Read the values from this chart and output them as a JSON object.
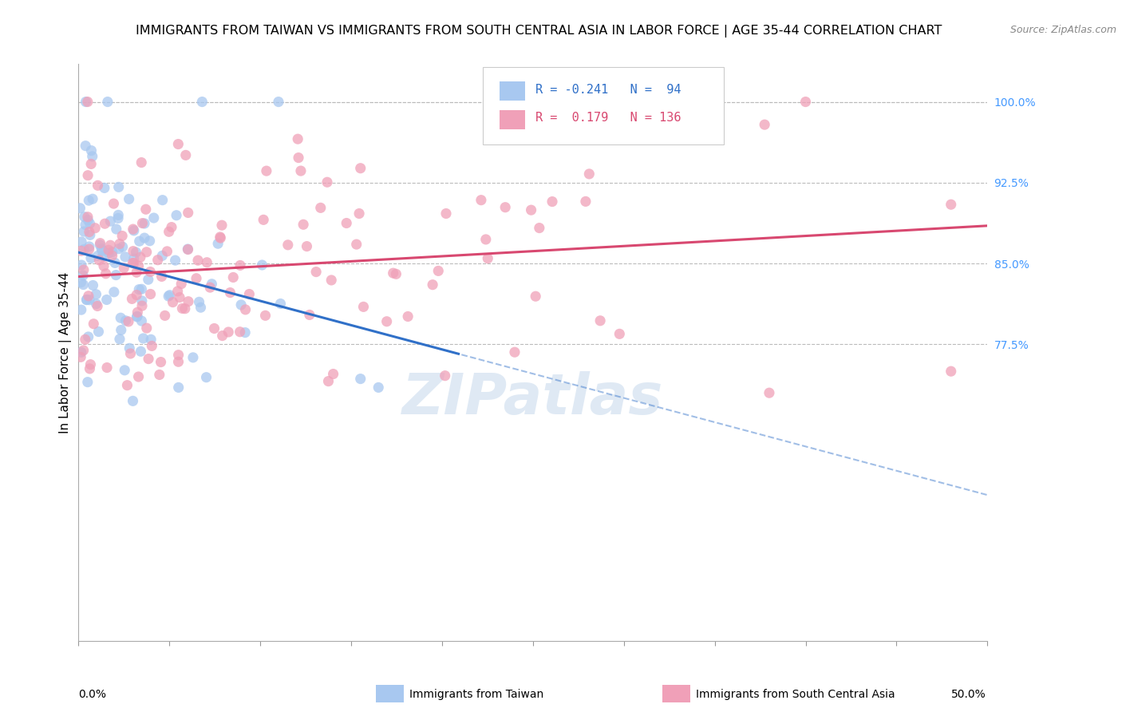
{
  "title": "IMMIGRANTS FROM TAIWAN VS IMMIGRANTS FROM SOUTH CENTRAL ASIA IN LABOR FORCE | AGE 35-44 CORRELATION CHART",
  "source": "Source: ZipAtlas.com",
  "ylabel": "In Labor Force | Age 35-44",
  "x_lim": [
    0.0,
    0.5
  ],
  "y_lim": [
    0.5,
    1.035
  ],
  "y_ticks": [
    0.775,
    0.85,
    0.925,
    1.0
  ],
  "y_tick_labels": [
    "77.5%",
    "85.0%",
    "92.5%",
    "100.0%"
  ],
  "blue_R": -0.241,
  "blue_N": 94,
  "pink_R": 0.179,
  "pink_N": 136,
  "blue_color": "#A8C8F0",
  "pink_color": "#F0A0B8",
  "blue_line_color": "#3070C8",
  "pink_line_color": "#D84870",
  "blue_line_solid_end": 0.21,
  "legend_label_blue": "Immigrants from Taiwan",
  "legend_label_pink": "Immigrants from South Central Asia",
  "watermark": "ZIPatlas",
  "background_color": "#FFFFFF",
  "grid_color": "#BBBBBB",
  "title_fontsize": 11.5,
  "source_fontsize": 9,
  "axis_label_fontsize": 11,
  "tick_fontsize": 10,
  "tick_color": "#4499FF",
  "blue_intercept": 0.857,
  "blue_slope": -0.38,
  "pink_intercept": 0.84,
  "pink_slope": 0.1
}
